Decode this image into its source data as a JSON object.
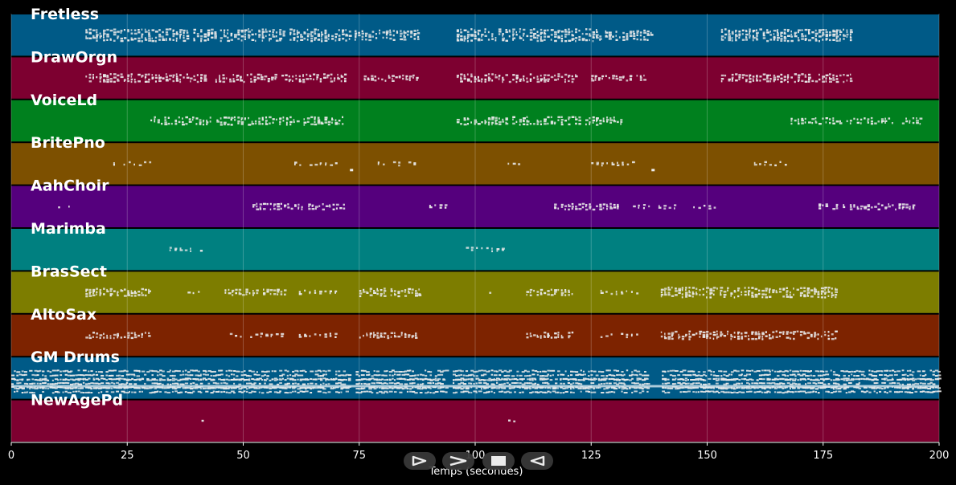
{
  "chart_data": {
    "type": "piano-roll",
    "xlabel": "Temps (secondes)",
    "xlim": [
      0,
      200
    ],
    "xticks": [
      0,
      25,
      50,
      75,
      100,
      125,
      150,
      175,
      200
    ],
    "grid": true,
    "tracks": [
      {
        "name": "Fretless",
        "color": "#005a87",
        "segments": [
          [
            16,
            44,
            6
          ],
          [
            45,
            73,
            6
          ],
          [
            74,
            88,
            5
          ],
          [
            96,
            127,
            6
          ],
          [
            128,
            138,
            5
          ],
          [
            153,
            181,
            6
          ]
        ]
      },
      {
        "name": "DrawOrgn",
        "color": "#7d0030",
        "segments": [
          [
            16,
            42,
            4
          ],
          [
            44,
            73,
            4
          ],
          [
            76,
            88,
            3
          ],
          [
            96,
            122,
            4
          ],
          [
            125,
            137,
            3
          ],
          [
            153,
            181,
            4
          ]
        ]
      },
      {
        "name": "VoiceLd",
        "color": "#00801e",
        "segments": [
          [
            30,
            72,
            4
          ],
          [
            96,
            132,
            4
          ],
          [
            168,
            196,
            3
          ]
        ]
      },
      {
        "name": "BritePno",
        "color": "#7d5000",
        "segments": [
          [
            22,
            30,
            2
          ],
          [
            61,
            70,
            2
          ],
          [
            79,
            87,
            2
          ],
          [
            107,
            110,
            1
          ],
          [
            125,
            134,
            2
          ],
          [
            159,
            167,
            2
          ]
        ],
        "dots": [
          73,
          138
        ]
      },
      {
        "name": "AahChoir",
        "color": "#55007d",
        "segments": [
          [
            9,
            13,
            1
          ],
          [
            52,
            72,
            3
          ],
          [
            89,
            95,
            2
          ],
          [
            117,
            131,
            3
          ],
          [
            134,
            143,
            2
          ],
          [
            147,
            152,
            2
          ],
          [
            174,
            195,
            3
          ]
        ]
      },
      {
        "name": "Marimba",
        "color": "#008080",
        "segments": [
          [
            33,
            41,
            2
          ],
          [
            98,
            106,
            2
          ]
        ]
      },
      {
        "name": "BrasSect",
        "color": "#7d7d00",
        "segments": [
          [
            16,
            30,
            4
          ],
          [
            38,
            41,
            1
          ],
          [
            46,
            59,
            3
          ],
          [
            62,
            70,
            2
          ],
          [
            75,
            88,
            4
          ],
          [
            103,
            106,
            1
          ],
          [
            111,
            121,
            3
          ],
          [
            127,
            136,
            2
          ],
          [
            140,
            178,
            5
          ]
        ]
      },
      {
        "name": "AltoSax",
        "color": "#7d2300",
        "segments": [
          [
            16,
            30,
            3
          ],
          [
            46,
            59,
            2
          ],
          [
            62,
            70,
            2
          ],
          [
            75,
            88,
            3
          ],
          [
            111,
            121,
            3
          ],
          [
            127,
            136,
            2
          ],
          [
            140,
            178,
            4
          ]
        ]
      },
      {
        "name": "GM Drums",
        "color": "#005a87",
        "segments": [
          [
            0,
            200,
            8
          ]
        ],
        "gaps": [
          [
            73,
            74
          ],
          [
            94,
            95
          ],
          [
            137,
            140
          ]
        ]
      },
      {
        "name": "NewAgePd",
        "color": "#7d0030",
        "segments": [
          [
            41,
            44,
            1
          ],
          [
            106,
            109,
            1
          ]
        ]
      }
    ]
  },
  "controls": [
    {
      "name": "play-icon"
    },
    {
      "name": "fast-forward-icon"
    },
    {
      "name": "stop-icon"
    },
    {
      "name": "rewind-icon"
    }
  ]
}
